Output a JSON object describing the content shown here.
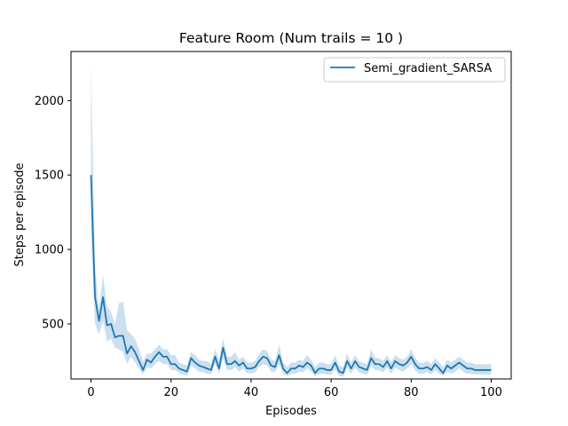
{
  "chart_data": {
    "type": "line",
    "title": "Feature Room (Num trails = 10 )",
    "xlabel": "Episodes",
    "ylabel": "Steps per episode",
    "xlim": [
      -5,
      105
    ],
    "ylim": [
      130,
      2330
    ],
    "xticks": [
      0,
      20,
      40,
      60,
      80,
      100
    ],
    "yticks": [
      500,
      1000,
      1500,
      2000
    ],
    "grid": false,
    "legend_position": "top-right",
    "series": [
      {
        "name": "Semi_gradient_SARSA",
        "color": "#1f77b4",
        "band_color": "#a9cce3",
        "x": [
          0,
          1,
          2,
          3,
          4,
          5,
          6,
          7,
          8,
          9,
          10,
          11,
          12,
          13,
          14,
          15,
          16,
          17,
          18,
          19,
          20,
          21,
          22,
          23,
          24,
          25,
          26,
          27,
          28,
          29,
          30,
          31,
          32,
          33,
          34,
          35,
          36,
          37,
          38,
          39,
          40,
          41,
          42,
          43,
          44,
          45,
          46,
          47,
          48,
          49,
          50,
          51,
          52,
          53,
          54,
          55,
          56,
          57,
          58,
          59,
          60,
          61,
          62,
          63,
          64,
          65,
          66,
          67,
          68,
          69,
          70,
          71,
          72,
          73,
          74,
          75,
          76,
          77,
          78,
          79,
          80,
          81,
          82,
          83,
          84,
          85,
          86,
          87,
          88,
          89,
          90,
          91,
          92,
          93,
          94,
          95,
          96,
          97,
          98,
          99,
          100
        ],
        "y": [
          1500,
          680,
          520,
          680,
          490,
          500,
          410,
          420,
          420,
          300,
          350,
          310,
          250,
          190,
          260,
          240,
          280,
          310,
          280,
          280,
          230,
          230,
          200,
          190,
          180,
          270,
          240,
          220,
          210,
          200,
          190,
          280,
          200,
          340,
          230,
          230,
          250,
          220,
          240,
          200,
          200,
          210,
          250,
          280,
          270,
          220,
          210,
          290,
          200,
          170,
          200,
          200,
          220,
          210,
          240,
          220,
          170,
          200,
          200,
          190,
          190,
          240,
          180,
          170,
          250,
          200,
          250,
          210,
          200,
          190,
          270,
          230,
          230,
          210,
          250,
          200,
          250,
          230,
          220,
          240,
          280,
          230,
          200,
          200,
          210,
          190,
          230,
          200,
          170,
          220,
          200,
          220,
          240,
          220,
          200,
          200,
          190,
          190,
          190,
          190,
          190
        ],
        "upper": [
          2250,
          900,
          600,
          830,
          620,
          580,
          500,
          640,
          650,
          460,
          430,
          400,
          330,
          250,
          300,
          300,
          330,
          360,
          330,
          330,
          290,
          290,
          240,
          230,
          220,
          310,
          290,
          260,
          250,
          250,
          230,
          330,
          260,
          400,
          280,
          280,
          310,
          260,
          280,
          240,
          240,
          250,
          300,
          330,
          320,
          260,
          250,
          360,
          240,
          210,
          240,
          240,
          260,
          250,
          290,
          260,
          210,
          240,
          240,
          230,
          230,
          290,
          220,
          210,
          300,
          240,
          290,
          250,
          240,
          230,
          330,
          270,
          270,
          250,
          290,
          240,
          290,
          270,
          260,
          280,
          330,
          270,
          240,
          240,
          250,
          230,
          270,
          240,
          210,
          260,
          240,
          260,
          280,
          260,
          240,
          240,
          230,
          230,
          230,
          230,
          230
        ],
        "lower": [
          1100,
          500,
          430,
          520,
          380,
          400,
          340,
          330,
          310,
          230,
          280,
          240,
          200,
          160,
          210,
          200,
          230,
          250,
          230,
          230,
          190,
          190,
          170,
          160,
          150,
          220,
          200,
          180,
          175,
          165,
          160,
          230,
          165,
          270,
          190,
          190,
          210,
          180,
          200,
          170,
          165,
          175,
          210,
          230,
          220,
          180,
          175,
          230,
          165,
          150,
          165,
          165,
          180,
          175,
          200,
          180,
          150,
          165,
          165,
          160,
          160,
          195,
          150,
          145,
          205,
          165,
          205,
          175,
          165,
          160,
          220,
          190,
          190,
          175,
          205,
          165,
          205,
          190,
          180,
          200,
          230,
          190,
          165,
          165,
          175,
          160,
          190,
          165,
          150,
          180,
          165,
          180,
          200,
          180,
          165,
          165,
          160,
          160,
          160,
          160,
          160
        ]
      }
    ]
  }
}
